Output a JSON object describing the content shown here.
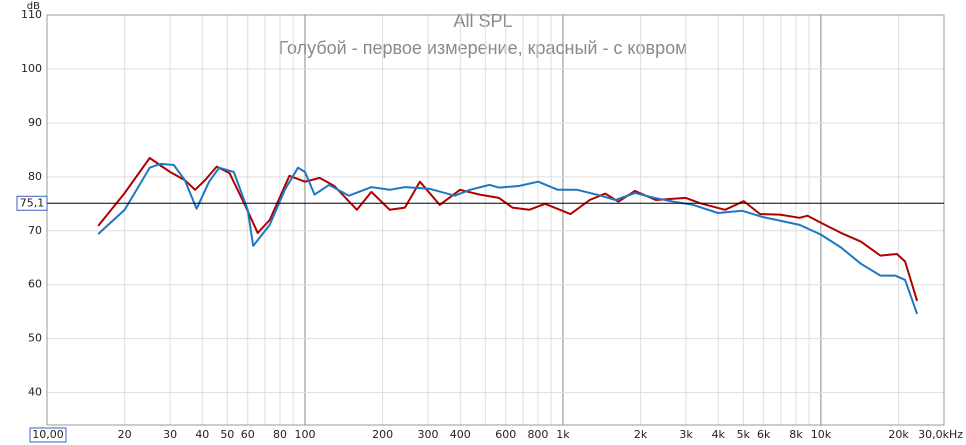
{
  "chart_data": {
    "type": "line",
    "title": "All SPL",
    "subtitle": "Голубой - первое измерение, красный - с ковром",
    "y_label": "dB",
    "log_x": true,
    "grid": true,
    "xlim": [
      {
        "value": 10,
        "label": "10,00"
      },
      {
        "value": 30000,
        "label": "30,0kHz"
      }
    ],
    "xticks": [
      20,
      30,
      40,
      50,
      60,
      80,
      100,
      200,
      300,
      400,
      600,
      800,
      {
        "value": 1000,
        "label": "1k"
      },
      {
        "value": 2000,
        "label": "2k"
      },
      {
        "value": 3000,
        "label": "3k"
      },
      {
        "value": 4000,
        "label": "4k"
      },
      {
        "value": 5000,
        "label": "5k"
      },
      {
        "value": 6000,
        "label": "6k"
      },
      {
        "value": 8000,
        "label": "8k"
      },
      {
        "value": 10000,
        "label": "10k"
      },
      {
        "value": 20000,
        "label": "20k"
      }
    ],
    "xminor": [
      70,
      90,
      500,
      700,
      900,
      7000,
      9000
    ],
    "ylim": [
      34,
      110
    ],
    "yticks": [
      40,
      50,
      60,
      70,
      80,
      90,
      100,
      110
    ],
    "cursor": {
      "value": 75.1,
      "label": "75,1"
    },
    "series": [
      {
        "name": "красный",
        "color": "#b00000",
        "x": [
          15.8,
          20,
          25,
          30,
          34.2,
          37.5,
          41,
          45.5,
          51,
          58.5,
          65.6,
          73,
          87,
          100,
          114,
          130,
          159,
          181,
          213,
          244,
          279,
          333,
          399,
          476,
          565,
          637,
          740,
          852,
          1070,
          1270,
          1460,
          1640,
          1900,
          2290,
          2990,
          3410,
          4250,
          5020,
          5810,
          6930,
          8270,
          8880,
          10000,
          11960,
          14270,
          17000,
          19700,
          21200,
          23600
        ],
        "values": [
          70.9,
          77.0,
          83.5,
          80.9,
          79.4,
          77.6,
          79.4,
          81.9,
          80.7,
          74.8,
          69.6,
          72.0,
          80.2,
          79.1,
          79.8,
          78.3,
          73.9,
          77.2,
          73.9,
          74.3,
          79.1,
          74.8,
          77.6,
          76.7,
          76.1,
          74.3,
          73.9,
          75.0,
          73.1,
          75.7,
          76.9,
          75.4,
          77.4,
          75.7,
          76.1,
          75.1,
          73.9,
          75.5,
          73.1,
          73.0,
          72.4,
          72.8,
          71.5,
          69.6,
          68.0,
          65.4,
          65.7,
          64.3,
          57.0
        ]
      },
      {
        "name": "голубой",
        "color": "#1f77c0",
        "x": [
          15.8,
          20,
          25,
          27.5,
          31,
          34.2,
          38,
          42.5,
          46.5,
          53,
          60,
          63,
          73,
          83.5,
          94,
          100,
          109,
          124,
          148,
          181,
          213,
          244,
          303,
          381,
          436,
          520,
          565,
          674,
          802,
          955,
          1135,
          1350,
          1600,
          1900,
          2260,
          2690,
          3200,
          3990,
          4960,
          5910,
          8270,
          10000,
          11960,
          14270,
          17000,
          19400,
          21200,
          23600
        ],
        "values": [
          69.4,
          73.9,
          81.7,
          82.4,
          82.2,
          79.4,
          74.1,
          79.1,
          81.7,
          80.9,
          73.9,
          67.2,
          71.1,
          77.6,
          81.7,
          80.9,
          76.7,
          78.5,
          76.5,
          78.1,
          77.6,
          78.1,
          77.8,
          76.5,
          77.6,
          78.5,
          78.0,
          78.3,
          79.1,
          77.6,
          77.6,
          76.7,
          75.7,
          77.0,
          76.1,
          75.4,
          74.8,
          73.3,
          73.7,
          72.6,
          71.1,
          69.3,
          66.9,
          63.9,
          61.7,
          61.7,
          60.9,
          54.6
        ]
      }
    ]
  }
}
